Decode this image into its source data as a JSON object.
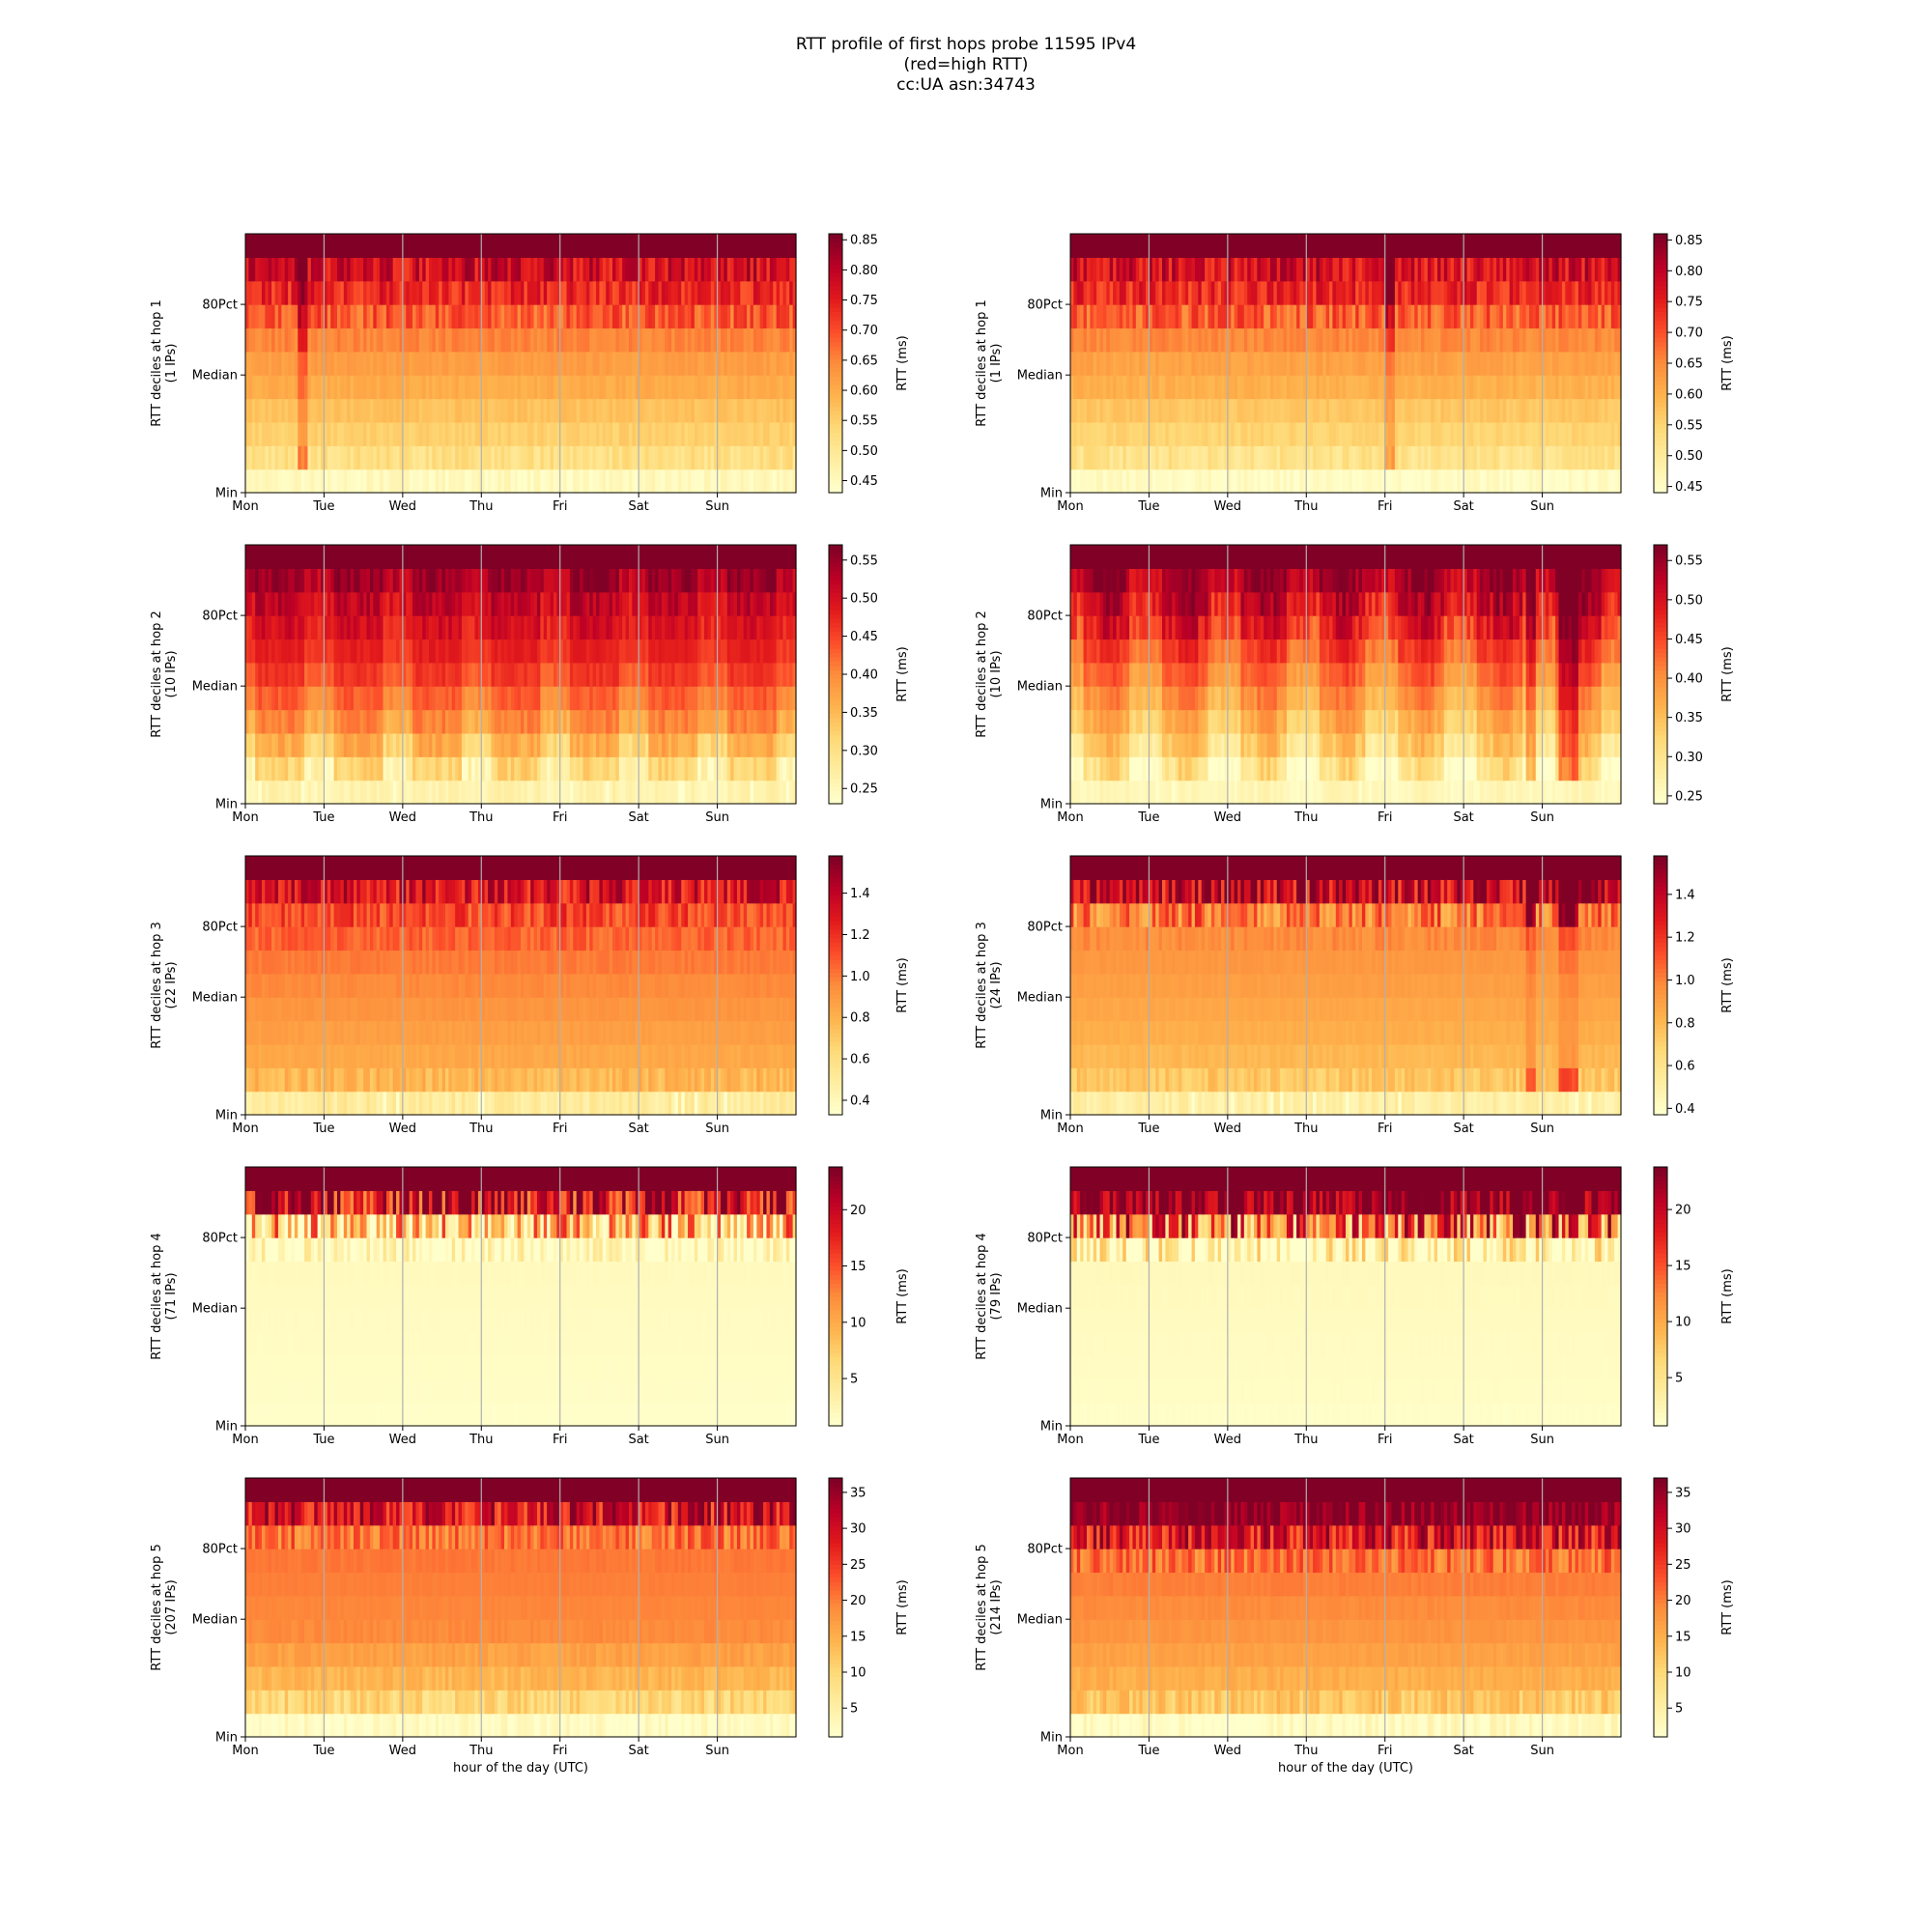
{
  "figure": {
    "title_lines": [
      "RTT profile of first hops probe 11595 IPv4",
      "(red=high RTT)",
      "cc:UA asn:34743"
    ]
  },
  "colormap": [
    "#ffffcc",
    "#ffeda0",
    "#fed976",
    "#feb24c",
    "#fd8d3c",
    "#fc4e2a",
    "#e31a1c",
    "#bd0026",
    "#800026"
  ],
  "chart_data": [
    {
      "type": "heatmap",
      "panel": "hop1-left",
      "ylabel": "RTT deciles at hop 1",
      "ylabel2": "(1 IPs)",
      "xlabel": "",
      "x_ticks": [
        "Mon",
        "Tue",
        "Wed",
        "Thu",
        "Fri",
        "Sat",
        "Sun"
      ],
      "y_ticks": [
        "80Pct",
        "Median",
        "Min"
      ],
      "colorbar_label": "RTT (ms)",
      "colorbar_ticks": [
        0.45,
        0.5,
        0.55,
        0.6,
        0.65,
        0.7,
        0.75,
        0.8,
        0.85
      ],
      "colorbar_tick_labels": [
        "0.45",
        "0.50",
        "0.55",
        "0.60",
        "0.65",
        "0.70",
        "0.75",
        "0.80",
        "0.85"
      ],
      "vmin": 0.43,
      "vmax": 0.86,
      "decile_levels": [
        0.45,
        0.52,
        0.55,
        0.57,
        0.6,
        0.62,
        0.65,
        0.69,
        0.74,
        0.78,
        0.86
      ],
      "weekly_pattern": "flat",
      "anomaly": "Mon ~17h"
    },
    {
      "type": "heatmap",
      "panel": "hop1-right",
      "ylabel": "RTT deciles at hop 1",
      "ylabel2": "(1 IPs)",
      "xlabel": "",
      "x_ticks": [
        "Mon",
        "Tue",
        "Wed",
        "Thu",
        "Fri",
        "Sat",
        "Sun"
      ],
      "y_ticks": [
        "80Pct",
        "Median",
        "Min"
      ],
      "colorbar_label": "RTT (ms)",
      "colorbar_ticks": [
        0.45,
        0.5,
        0.55,
        0.6,
        0.65,
        0.7,
        0.75,
        0.8,
        0.85
      ],
      "colorbar_tick_labels": [
        "0.45",
        "0.50",
        "0.55",
        "0.60",
        "0.65",
        "0.70",
        "0.75",
        "0.80",
        "0.85"
      ],
      "vmin": 0.44,
      "vmax": 0.86,
      "decile_levels": [
        0.45,
        0.52,
        0.55,
        0.57,
        0.6,
        0.62,
        0.65,
        0.69,
        0.74,
        0.78,
        0.86
      ],
      "weekly_pattern": "flat",
      "anomaly": "Fri ~0h"
    },
    {
      "type": "heatmap",
      "panel": "hop2-left",
      "ylabel": "RTT deciles at hop 2",
      "ylabel2": "(10 IPs)",
      "xlabel": "",
      "x_ticks": [
        "Mon",
        "Tue",
        "Wed",
        "Thu",
        "Fri",
        "Sat",
        "Sun"
      ],
      "y_ticks": [
        "80Pct",
        "Median",
        "Min"
      ],
      "colorbar_label": "RTT (ms)",
      "colorbar_ticks": [
        0.25,
        0.3,
        0.35,
        0.4,
        0.45,
        0.5,
        0.55
      ],
      "colorbar_tick_labels": [
        "0.25",
        "0.30",
        "0.35",
        "0.40",
        "0.45",
        "0.50",
        "0.55"
      ],
      "vmin": 0.23,
      "vmax": 0.57,
      "decile_levels": [
        0.26,
        0.31,
        0.36,
        0.4,
        0.43,
        0.46,
        0.48,
        0.5,
        0.52,
        0.55,
        0.57
      ],
      "weekly_pattern": "daily-low-evening",
      "anomaly": "none"
    },
    {
      "type": "heatmap",
      "panel": "hop2-right",
      "ylabel": "RTT deciles at hop 2",
      "ylabel2": "(10 IPs)",
      "xlabel": "",
      "x_ticks": [
        "Mon",
        "Tue",
        "Wed",
        "Thu",
        "Fri",
        "Sat",
        "Sun"
      ],
      "y_ticks": [
        "80Pct",
        "Median",
        "Min"
      ],
      "colorbar_label": "RTT (ms)",
      "colorbar_ticks": [
        0.25,
        0.3,
        0.35,
        0.4,
        0.45,
        0.5,
        0.55
      ],
      "colorbar_tick_labels": [
        "0.25",
        "0.30",
        "0.35",
        "0.40",
        "0.45",
        "0.50",
        "0.55"
      ],
      "vmin": 0.24,
      "vmax": 0.57,
      "decile_levels": [
        0.26,
        0.3,
        0.34,
        0.37,
        0.4,
        0.43,
        0.46,
        0.49,
        0.52,
        0.55,
        0.57
      ],
      "weekly_pattern": "daily-strong",
      "anomaly": "Sun late"
    },
    {
      "type": "heatmap",
      "panel": "hop3-left",
      "ylabel": "RTT deciles at hop 3",
      "ylabel2": "(22 IPs)",
      "xlabel": "",
      "x_ticks": [
        "Mon",
        "Tue",
        "Wed",
        "Thu",
        "Fri",
        "Sat",
        "Sun"
      ],
      "y_ticks": [
        "80Pct",
        "Median",
        "Min"
      ],
      "colorbar_label": "RTT (ms)",
      "colorbar_ticks": [
        0.4,
        0.6,
        0.8,
        1.0,
        1.2,
        1.4
      ],
      "colorbar_tick_labels": [
        "0.4",
        "0.6",
        "0.8",
        "1.0",
        "1.2",
        "1.4"
      ],
      "vmin": 0.33,
      "vmax": 1.58,
      "decile_levels": [
        0.5,
        0.78,
        0.84,
        0.88,
        0.92,
        0.96,
        1.0,
        1.06,
        1.14,
        1.32,
        1.58
      ],
      "weekly_pattern": "flat",
      "anomaly": "none"
    },
    {
      "type": "heatmap",
      "panel": "hop3-right",
      "ylabel": "RTT deciles at hop 3",
      "ylabel2": "(24 IPs)",
      "xlabel": "",
      "x_ticks": [
        "Mon",
        "Tue",
        "Wed",
        "Thu",
        "Fri",
        "Sat",
        "Sun"
      ],
      "y_ticks": [
        "80Pct",
        "Median",
        "Min"
      ],
      "colorbar_label": "RTT (ms)",
      "colorbar_ticks": [
        0.4,
        0.6,
        0.8,
        1.0,
        1.2,
        1.4
      ],
      "colorbar_tick_labels": [
        "0.4",
        "0.6",
        "0.8",
        "1.0",
        "1.2",
        "1.4"
      ],
      "vmin": 0.37,
      "vmax": 1.58,
      "decile_levels": [
        0.5,
        0.74,
        0.8,
        0.84,
        0.87,
        0.9,
        0.93,
        0.97,
        1.02,
        1.4,
        1.58
      ],
      "weekly_pattern": "flat",
      "anomaly": "Sun late"
    },
    {
      "type": "heatmap",
      "panel": "hop4-left",
      "ylabel": "RTT deciles at hop 4",
      "ylabel2": "(71 IPs)",
      "xlabel": "",
      "x_ticks": [
        "Mon",
        "Tue",
        "Wed",
        "Thu",
        "Fri",
        "Sat",
        "Sun"
      ],
      "y_ticks": [
        "80Pct",
        "Median",
        "Min"
      ],
      "colorbar_label": "RTT (ms)",
      "colorbar_ticks": [
        5,
        10,
        15,
        20
      ],
      "colorbar_tick_labels": [
        "5",
        "10",
        "15",
        "20"
      ],
      "vmin": 0.8,
      "vmax": 23.8,
      "decile_levels": [
        1.0,
        1.2,
        1.3,
        1.4,
        1.5,
        1.6,
        1.7,
        1.8,
        8.0,
        20.0,
        23.8
      ],
      "weekly_pattern": "flat",
      "anomaly": "none"
    },
    {
      "type": "heatmap",
      "panel": "hop4-right",
      "ylabel": "RTT deciles at hop 4",
      "ylabel2": "(79 IPs)",
      "xlabel": "",
      "x_ticks": [
        "Mon",
        "Tue",
        "Wed",
        "Thu",
        "Fri",
        "Sat",
        "Sun"
      ],
      "y_ticks": [
        "80Pct",
        "Median",
        "Min"
      ],
      "colorbar_label": "RTT (ms)",
      "colorbar_ticks": [
        5,
        10,
        15,
        20
      ],
      "colorbar_tick_labels": [
        "5",
        "10",
        "15",
        "20"
      ],
      "vmin": 0.7,
      "vmax": 23.8,
      "decile_levels": [
        1.0,
        1.2,
        1.3,
        1.4,
        1.5,
        1.6,
        1.7,
        2.0,
        14.0,
        23.0,
        23.8
      ],
      "weekly_pattern": "flat",
      "anomaly": "none"
    },
    {
      "type": "heatmap",
      "panel": "hop5-left",
      "ylabel": "RTT deciles at hop 5",
      "ylabel2": "(207 IPs)",
      "xlabel": "hour of the day (UTC)",
      "x_ticks": [
        "Mon",
        "Tue",
        "Wed",
        "Thu",
        "Fri",
        "Sat",
        "Sun"
      ],
      "y_ticks": [
        "80Pct",
        "Median",
        "Min"
      ],
      "colorbar_label": "RTT (ms)",
      "colorbar_ticks": [
        5,
        10,
        15,
        20,
        25,
        30,
        35
      ],
      "colorbar_tick_labels": [
        "5",
        "10",
        "15",
        "20",
        "25",
        "30",
        "35"
      ],
      "vmin": 1.0,
      "vmax": 37.0,
      "decile_levels": [
        2.0,
        10.0,
        14.0,
        16.5,
        19.0,
        19.5,
        20.0,
        20.5,
        21.0,
        30.0,
        37.0
      ],
      "weekly_pattern": "flat",
      "anomaly": "none"
    },
    {
      "type": "heatmap",
      "panel": "hop5-right",
      "ylabel": "RTT deciles at hop 5",
      "ylabel2": "(214 IPs)",
      "xlabel": "hour of the day (UTC)",
      "x_ticks": [
        "Mon",
        "Tue",
        "Wed",
        "Thu",
        "Fri",
        "Sat",
        "Sun"
      ],
      "y_ticks": [
        "80Pct",
        "Median",
        "Min"
      ],
      "colorbar_label": "RTT (ms)",
      "colorbar_ticks": [
        5,
        10,
        15,
        20,
        25,
        30,
        35
      ],
      "colorbar_tick_labels": [
        "5",
        "10",
        "15",
        "20",
        "25",
        "30",
        "35"
      ],
      "vmin": 1.0,
      "vmax": 37.0,
      "decile_levels": [
        2.0,
        12.0,
        15.0,
        16.5,
        18.0,
        19.0,
        20.0,
        21.0,
        29.0,
        36.0,
        37.0
      ],
      "weekly_pattern": "flat",
      "anomaly": "none"
    }
  ]
}
